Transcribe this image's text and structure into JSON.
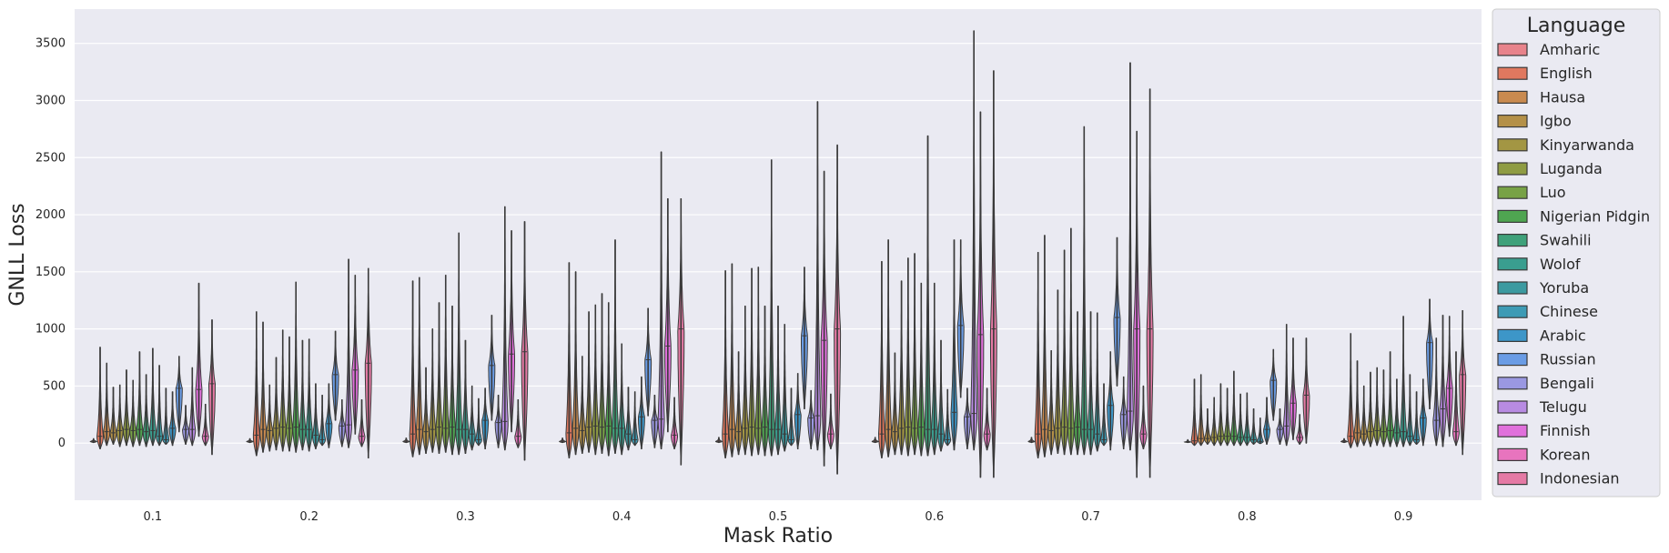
{
  "chart_data": {
    "type": "violin",
    "xlabel": "Mask Ratio",
    "ylabel": "GNLL Loss",
    "ylim": [
      -500,
      3800
    ],
    "yticks": [
      0,
      500,
      1000,
      1500,
      2000,
      2500,
      3000,
      3500
    ],
    "yticklabels": [
      "0",
      "500",
      "1000",
      "1500",
      "2000",
      "2500",
      "3000",
      "3500"
    ],
    "categories": [
      "0.1",
      "0.2",
      "0.3",
      "0.4",
      "0.5",
      "0.6",
      "0.7",
      "0.8",
      "0.9"
    ],
    "grid": true,
    "legend": {
      "title": "Language",
      "position": "outside-right"
    },
    "series": [
      {
        "name": "Amharic",
        "color": "#E8838B",
        "medians": [
          15,
          15,
          15,
          15,
          15,
          15,
          15,
          10,
          15
        ],
        "mins": [
          5,
          5,
          5,
          5,
          5,
          5,
          5,
          5,
          5
        ],
        "maxs": [
          40,
          40,
          45,
          45,
          50,
          50,
          50,
          30,
          40
        ]
      },
      {
        "name": "English",
        "color": "#E0785F",
        "medians": [
          60,
          70,
          80,
          90,
          80,
          80,
          80,
          20,
          60
        ],
        "mins": [
          -50,
          -110,
          -120,
          -130,
          -130,
          -130,
          -130,
          -20,
          -40
        ],
        "maxs": [
          840,
          1150,
          1420,
          1580,
          1510,
          1590,
          1670,
          560,
          960
        ]
      },
      {
        "name": "Hausa",
        "color": "#C98A4F",
        "medians": [
          100,
          120,
          120,
          130,
          120,
          120,
          120,
          40,
          90
        ],
        "mins": [
          -20,
          -80,
          -100,
          -100,
          -120,
          -120,
          -120,
          -20,
          -30
        ],
        "maxs": [
          700,
          1060,
          1450,
          1500,
          1570,
          1780,
          1820,
          600,
          720
        ]
      },
      {
        "name": "Igbo",
        "color": "#B49048",
        "medians": [
          90,
          110,
          100,
          110,
          100,
          100,
          110,
          40,
          80
        ],
        "mins": [
          -10,
          -70,
          -90,
          -90,
          -100,
          -100,
          -100,
          -10,
          -20
        ],
        "maxs": [
          490,
          510,
          660,
          760,
          800,
          790,
          810,
          300,
          500
        ]
      },
      {
        "name": "Kinyarwanda",
        "color": "#A39643",
        "medians": [
          110,
          130,
          120,
          140,
          130,
          130,
          130,
          50,
          100
        ],
        "mins": [
          -30,
          -60,
          -80,
          -80,
          -100,
          -100,
          -90,
          -20,
          -30
        ],
        "maxs": [
          510,
          750,
          1000,
          1150,
          1200,
          1420,
          1340,
          400,
          620
        ]
      },
      {
        "name": "Luganda",
        "color": "#8F9C43",
        "medians": [
          120,
          140,
          140,
          150,
          140,
          140,
          140,
          60,
          110
        ],
        "mins": [
          -20,
          -70,
          -90,
          -100,
          -110,
          -110,
          -100,
          -20,
          -20
        ],
        "maxs": [
          640,
          990,
          1230,
          1210,
          1530,
          1620,
          1690,
          520,
          660
        ]
      },
      {
        "name": "Luo",
        "color": "#78A246",
        "medians": [
          110,
          130,
          130,
          140,
          130,
          130,
          130,
          60,
          100
        ],
        "mins": [
          -30,
          -70,
          -80,
          -90,
          -100,
          -100,
          -100,
          -20,
          -30
        ],
        "maxs": [
          550,
          930,
          1470,
          1310,
          1540,
          1660,
          1880,
          480,
          640
        ]
      },
      {
        "name": "Nigerian Pidgin",
        "color": "#4FA551",
        "medians": [
          120,
          140,
          140,
          150,
          140,
          140,
          140,
          60,
          110
        ],
        "mins": [
          -20,
          -80,
          -100,
          -110,
          -110,
          -110,
          -100,
          -20,
          -30
        ],
        "maxs": [
          800,
          1410,
          1200,
          1230,
          1200,
          1400,
          1150,
          630,
          800
        ]
      },
      {
        "name": "Swahili",
        "color": "#3FA17A",
        "medians": [
          100,
          120,
          120,
          130,
          120,
          120,
          120,
          50,
          90
        ],
        "mins": [
          -30,
          -60,
          -100,
          -90,
          -110,
          -110,
          -100,
          -20,
          -30
        ],
        "maxs": [
          600,
          900,
          1840,
          1780,
          2480,
          2690,
          2770,
          430,
          560
        ]
      },
      {
        "name": "Wolof",
        "color": "#3A9E8F",
        "medians": [
          110,
          120,
          120,
          130,
          120,
          120,
          120,
          50,
          100
        ],
        "mins": [
          -20,
          -70,
          -90,
          -100,
          -100,
          -100,
          -100,
          -20,
          -30
        ],
        "maxs": [
          830,
          910,
          900,
          870,
          1200,
          1400,
          1150,
          440,
          1110
        ]
      },
      {
        "name": "Yoruba",
        "color": "#3C9AA0",
        "medians": [
          60,
          70,
          80,
          80,
          80,
          80,
          80,
          30,
          60
        ],
        "mins": [
          -20,
          -50,
          -60,
          -60,
          -70,
          -70,
          -70,
          -10,
          -20
        ],
        "maxs": [
          680,
          520,
          500,
          490,
          1040,
          900,
          1140,
          300,
          600
        ]
      },
      {
        "name": "Chinese",
        "color": "#3E9BB5",
        "medians": [
          30,
          30,
          30,
          30,
          30,
          30,
          30,
          15,
          30
        ],
        "mins": [
          -10,
          -20,
          -20,
          -20,
          -20,
          -20,
          -20,
          -5,
          -10
        ],
        "maxs": [
          480,
          420,
          390,
          450,
          480,
          470,
          520,
          220,
          450
        ]
      },
      {
        "name": "Arabic",
        "color": "#3D96C8",
        "medians": [
          130,
          170,
          200,
          230,
          250,
          270,
          330,
          120,
          220
        ],
        "mins": [
          -20,
          -40,
          -50,
          -50,
          -50,
          -60,
          -60,
          -10,
          -20
        ],
        "maxs": [
          450,
          520,
          480,
          580,
          610,
          1780,
          800,
          400,
          560
        ]
      },
      {
        "name": "Russian",
        "color": "#6A9CE5",
        "medians": [
          480,
          600,
          680,
          730,
          940,
          1030,
          1100,
          550,
          880
        ],
        "mins": [
          100,
          200,
          200,
          240,
          300,
          400,
          500,
          200,
          300
        ],
        "maxs": [
          760,
          980,
          1120,
          1180,
          1540,
          1780,
          1800,
          820,
          1260
        ]
      },
      {
        "name": "Bengali",
        "color": "#9A98E2",
        "medians": [
          120,
          150,
          180,
          200,
          220,
          230,
          250,
          120,
          200
        ],
        "mins": [
          -10,
          -30,
          -40,
          -40,
          -50,
          -50,
          -50,
          -10,
          -20
        ],
        "maxs": [
          330,
          380,
          420,
          420,
          460,
          480,
          580,
          300,
          920
        ]
      },
      {
        "name": "Telugu",
        "color": "#B88BE2",
        "medians": [
          120,
          160,
          190,
          210,
          240,
          260,
          280,
          150,
          300
        ],
        "mins": [
          -20,
          -40,
          -60,
          -50,
          -60,
          -60,
          -60,
          -20,
          -30
        ],
        "maxs": [
          660,
          1610,
          2070,
          2550,
          2990,
          3610,
          3330,
          1040,
          1120
        ]
      },
      {
        "name": "Finnish",
        "color": "#E070DB",
        "medians": [
          470,
          640,
          780,
          850,
          900,
          950,
          1000,
          350,
          480
        ],
        "mins": [
          60,
          80,
          100,
          100,
          -200,
          -300,
          -300,
          30,
          60
        ],
        "maxs": [
          1400,
          1470,
          1860,
          2140,
          2380,
          2900,
          2730,
          920,
          1110
        ]
      },
      {
        "name": "Korean",
        "color": "#E874BE",
        "medians": [
          60,
          60,
          60,
          70,
          80,
          80,
          80,
          50,
          100
        ],
        "mins": [
          -20,
          -30,
          -40,
          -50,
          -50,
          -60,
          -50,
          -10,
          -20
        ],
        "maxs": [
          340,
          380,
          380,
          400,
          430,
          480,
          500,
          250,
          800
        ]
      },
      {
        "name": "Indonesian",
        "color": "#E57AA5",
        "medians": [
          520,
          700,
          800,
          1000,
          1000,
          1000,
          1000,
          420,
          600
        ],
        "mins": [
          -100,
          -130,
          -150,
          -190,
          -270,
          -300,
          -300,
          0,
          -100
        ],
        "maxs": [
          1080,
          1530,
          1940,
          2140,
          2610,
          3260,
          3100,
          920,
          1160
        ]
      }
    ]
  }
}
